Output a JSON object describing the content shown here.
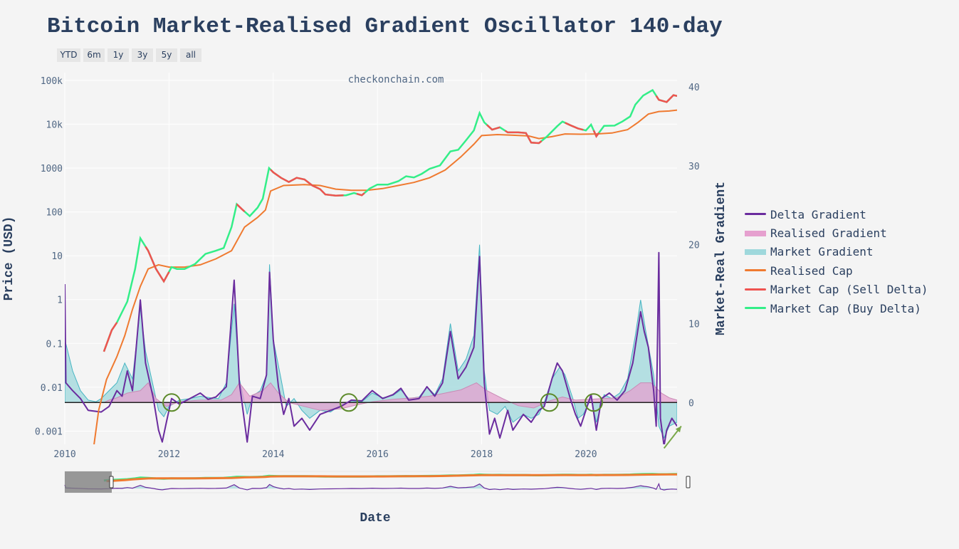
{
  "title": "Bitcoin Market-Realised Gradient Oscillator 140-day",
  "range_buttons": [
    "YTD",
    "6m",
    "1y",
    "3y",
    "5y",
    "all"
  ],
  "watermark": "checkonchain.com",
  "colors": {
    "delta_gradient": "#6a2c9e",
    "realised_gradient": "#e6a0cf",
    "market_gradient": "#9fd8dc",
    "market_gradient_line": "#46b5c3",
    "realised_cap": "#ef7a30",
    "sell_delta": "#ef5350",
    "buy_delta": "#33ee88",
    "annotation": "#5d8a2a",
    "zero_line": "#222222"
  },
  "chart_data": {
    "type": "line",
    "title": "Bitcoin Market-Realised Gradient Oscillator 140-day",
    "xlabel": "Date",
    "ylabel_left": "Price (USD)",
    "ylabel_right": "Market-Real Gradient",
    "x_range": [
      "2010-01-01",
      "2021-10-01"
    ],
    "x_ticks": [
      "2010",
      "2012",
      "2014",
      "2016",
      "2018",
      "2020"
    ],
    "y_left": {
      "scale": "log",
      "range": [
        0.0005,
        150000
      ],
      "ticks": [
        {
          "value": 0.001,
          "label": "0.001"
        },
        {
          "value": 0.01,
          "label": "0.01"
        },
        {
          "value": 0.1,
          "label": "0.1"
        },
        {
          "value": 1,
          "label": "1"
        },
        {
          "value": 10,
          "label": "10"
        },
        {
          "value": 100,
          "label": "100"
        },
        {
          "value": 1000,
          "label": "1000"
        },
        {
          "value": 10000,
          "label": "10k"
        },
        {
          "value": 100000,
          "label": "100k"
        }
      ]
    },
    "y_right": {
      "scale": "linear",
      "range": [
        -5.3,
        41.8
      ],
      "ticks": [
        {
          "value": 0,
          "label": "0"
        },
        {
          "value": 10,
          "label": "10"
        },
        {
          "value": 20,
          "label": "20"
        },
        {
          "value": 30,
          "label": "30"
        },
        {
          "value": 40,
          "label": "40"
        }
      ]
    },
    "legend_position": "right",
    "series": [
      {
        "name": "Delta Gradient",
        "key": "delta_gradient",
        "axis": "right",
        "style": "line"
      },
      {
        "name": "Realised Gradient",
        "key": "realised_gradient",
        "axis": "right",
        "style": "area"
      },
      {
        "name": "Market Gradient",
        "key": "market_gradient",
        "axis": "right",
        "style": "area"
      },
      {
        "name": "Realised Cap",
        "key": "realised_cap",
        "axis": "left",
        "style": "line"
      },
      {
        "name": "Market Cap (Sell Delta)",
        "key": "sell_delta",
        "axis": "left",
        "style": "line"
      },
      {
        "name": "Market Cap (Buy Delta)",
        "key": "buy_delta",
        "axis": "left",
        "style": "line"
      }
    ],
    "market_cap": [
      [
        2010.75,
        0.065
      ],
      [
        2010.9,
        0.2
      ],
      [
        2011.0,
        0.3
      ],
      [
        2011.2,
        0.9
      ],
      [
        2011.35,
        5
      ],
      [
        2011.45,
        25
      ],
      [
        2011.6,
        13
      ],
      [
        2011.75,
        5
      ],
      [
        2011.9,
        2.6
      ],
      [
        2012.05,
        5.5
      ],
      [
        2012.15,
        5
      ],
      [
        2012.3,
        5
      ],
      [
        2012.5,
        6.5
      ],
      [
        2012.7,
        11
      ],
      [
        2012.9,
        13
      ],
      [
        2013.05,
        15
      ],
      [
        2013.2,
        45
      ],
      [
        2013.3,
        150
      ],
      [
        2013.4,
        115
      ],
      [
        2013.55,
        80
      ],
      [
        2013.7,
        125
      ],
      [
        2013.8,
        200
      ],
      [
        2013.92,
        1000
      ],
      [
        2014.0,
        800
      ],
      [
        2014.15,
        600
      ],
      [
        2014.3,
        480
      ],
      [
        2014.45,
        600
      ],
      [
        2014.6,
        550
      ],
      [
        2014.75,
        400
      ],
      [
        2014.9,
        330
      ],
      [
        2015.0,
        250
      ],
      [
        2015.2,
        235
      ],
      [
        2015.4,
        240
      ],
      [
        2015.55,
        270
      ],
      [
        2015.7,
        240
      ],
      [
        2015.85,
        340
      ],
      [
        2016.0,
        420
      ],
      [
        2016.2,
        420
      ],
      [
        2016.4,
        500
      ],
      [
        2016.55,
        650
      ],
      [
        2016.7,
        610
      ],
      [
        2016.85,
        740
      ],
      [
        2017.0,
        960
      ],
      [
        2017.2,
        1150
      ],
      [
        2017.4,
        2400
      ],
      [
        2017.55,
        2600
      ],
      [
        2017.7,
        4300
      ],
      [
        2017.85,
        7200
      ],
      [
        2017.96,
        18000
      ],
      [
        2018.05,
        11000
      ],
      [
        2018.2,
        7500
      ],
      [
        2018.35,
        8500
      ],
      [
        2018.5,
        6500
      ],
      [
        2018.7,
        6500
      ],
      [
        2018.85,
        6300
      ],
      [
        2018.95,
        3800
      ],
      [
        2019.1,
        3700
      ],
      [
        2019.25,
        5200
      ],
      [
        2019.45,
        9000
      ],
      [
        2019.55,
        11500
      ],
      [
        2019.7,
        9500
      ],
      [
        2019.85,
        8000
      ],
      [
        2020.0,
        7200
      ],
      [
        2020.1,
        9800
      ],
      [
        2020.2,
        5300
      ],
      [
        2020.35,
        9200
      ],
      [
        2020.55,
        9300
      ],
      [
        2020.7,
        11500
      ],
      [
        2020.85,
        15000
      ],
      [
        2020.95,
        28000
      ],
      [
        2021.1,
        45000
      ],
      [
        2021.28,
        60000
      ],
      [
        2021.4,
        36000
      ],
      [
        2021.55,
        32000
      ],
      [
        2021.68,
        46000
      ],
      [
        2021.75,
        44000
      ]
    ],
    "market_cap_sell_segments": [
      [
        2010.75,
        2011.0
      ],
      [
        2011.55,
        2012.0
      ],
      [
        2013.3,
        2013.45
      ],
      [
        2013.95,
        2015.35
      ],
      [
        2015.6,
        2015.75
      ],
      [
        2018.1,
        2018.35
      ],
      [
        2018.45,
        2019.15
      ],
      [
        2019.6,
        2019.95
      ],
      [
        2020.15,
        2020.25
      ],
      [
        2021.35,
        2021.75
      ]
    ],
    "realised_cap": [
      [
        2010.55,
        0.0004
      ],
      [
        2010.65,
        0.003
      ],
      [
        2010.8,
        0.015
      ],
      [
        2011.0,
        0.05
      ],
      [
        2011.15,
        0.15
      ],
      [
        2011.3,
        0.6
      ],
      [
        2011.45,
        2.0
      ],
      [
        2011.6,
        5
      ],
      [
        2011.8,
        6.2
      ],
      [
        2012.0,
        5.5
      ],
      [
        2012.3,
        5.5
      ],
      [
        2012.6,
        6.2
      ],
      [
        2012.9,
        8.5
      ],
      [
        2013.2,
        13
      ],
      [
        2013.45,
        45
      ],
      [
        2013.7,
        75
      ],
      [
        2013.85,
        110
      ],
      [
        2013.95,
        300
      ],
      [
        2014.2,
        400
      ],
      [
        2014.6,
        420
      ],
      [
        2014.9,
        400
      ],
      [
        2015.2,
        330
      ],
      [
        2015.5,
        310
      ],
      [
        2015.8,
        310
      ],
      [
        2016.1,
        340
      ],
      [
        2016.4,
        400
      ],
      [
        2016.7,
        470
      ],
      [
        2017.0,
        600
      ],
      [
        2017.3,
        900
      ],
      [
        2017.6,
        1800
      ],
      [
        2017.85,
        3500
      ],
      [
        2018.0,
        5500
      ],
      [
        2018.3,
        5800
      ],
      [
        2018.6,
        5600
      ],
      [
        2018.9,
        5400
      ],
      [
        2019.1,
        4700
      ],
      [
        2019.35,
        5200
      ],
      [
        2019.6,
        6000
      ],
      [
        2019.9,
        5900
      ],
      [
        2020.2,
        6000
      ],
      [
        2020.5,
        6300
      ],
      [
        2020.8,
        7500
      ],
      [
        2021.0,
        11000
      ],
      [
        2021.2,
        17000
      ],
      [
        2021.4,
        19500
      ],
      [
        2021.6,
        20000
      ],
      [
        2021.75,
        21000
      ]
    ],
    "market_gradient": [
      [
        2010.0,
        8.0
      ],
      [
        2010.15,
        4.0
      ],
      [
        2010.3,
        1.5
      ],
      [
        2010.45,
        0.3
      ],
      [
        2010.6,
        0.1
      ],
      [
        2010.7,
        0.5
      ],
      [
        2010.85,
        1.5
      ],
      [
        2011.0,
        2.5
      ],
      [
        2011.15,
        5.0
      ],
      [
        2011.3,
        3.0
      ],
      [
        2011.45,
        12.0
      ],
      [
        2011.55,
        6.5
      ],
      [
        2011.7,
        2.0
      ],
      [
        2011.8,
        -1.0
      ],
      [
        2011.9,
        -1.8
      ],
      [
        2012.0,
        -0.5
      ],
      [
        2012.2,
        0.3
      ],
      [
        2012.4,
        0.5
      ],
      [
        2012.6,
        0.8
      ],
      [
        2012.8,
        0.6
      ],
      [
        2012.95,
        0.5
      ],
      [
        2013.1,
        2.5
      ],
      [
        2013.25,
        12.5
      ],
      [
        2013.35,
        3.0
      ],
      [
        2013.5,
        -1.5
      ],
      [
        2013.6,
        0.8
      ],
      [
        2013.75,
        1.5
      ],
      [
        2013.87,
        3.5
      ],
      [
        2013.93,
        17.5
      ],
      [
        2014.0,
        8.0
      ],
      [
        2014.15,
        3.0
      ],
      [
        2014.25,
        -0.5
      ],
      [
        2014.4,
        0.5
      ],
      [
        2014.55,
        -1.0
      ],
      [
        2014.7,
        -2.0
      ],
      [
        2014.9,
        -1.0
      ],
      [
        2015.1,
        -1.2
      ],
      [
        2015.3,
        -0.3
      ],
      [
        2015.5,
        0.2
      ],
      [
        2015.7,
        0.1
      ],
      [
        2015.9,
        1.2
      ],
      [
        2016.1,
        0.6
      ],
      [
        2016.3,
        0.9
      ],
      [
        2016.45,
        1.6
      ],
      [
        2016.6,
        0.5
      ],
      [
        2016.8,
        0.7
      ],
      [
        2016.95,
        2.0
      ],
      [
        2017.1,
        1.0
      ],
      [
        2017.25,
        3.0
      ],
      [
        2017.4,
        10.0
      ],
      [
        2017.55,
        4.0
      ],
      [
        2017.7,
        5.5
      ],
      [
        2017.85,
        8.5
      ],
      [
        2017.96,
        20.0
      ],
      [
        2018.05,
        4.0
      ],
      [
        2018.15,
        -1.0
      ],
      [
        2018.3,
        -1.5
      ],
      [
        2018.45,
        -0.5
      ],
      [
        2018.6,
        -2.5
      ],
      [
        2018.8,
        -1.5
      ],
      [
        2018.95,
        -2.0
      ],
      [
        2019.1,
        -1.5
      ],
      [
        2019.2,
        0.0
      ],
      [
        2019.35,
        3.0
      ],
      [
        2019.5,
        4.5
      ],
      [
        2019.6,
        3.5
      ],
      [
        2019.75,
        0.5
      ],
      [
        2019.85,
        -2.0
      ],
      [
        2019.95,
        -1.5
      ],
      [
        2020.1,
        0.5
      ],
      [
        2020.2,
        -2.5
      ],
      [
        2020.35,
        1.0
      ],
      [
        2020.5,
        0.5
      ],
      [
        2020.65,
        1.2
      ],
      [
        2020.8,
        3.0
      ],
      [
        2020.95,
        8.5
      ],
      [
        2021.05,
        13.0
      ],
      [
        2021.15,
        9.0
      ],
      [
        2021.3,
        3.5
      ],
      [
        2021.4,
        -3.0
      ],
      [
        2021.5,
        -4.5
      ],
      [
        2021.6,
        -3.0
      ],
      [
        2021.75,
        -2.5
      ]
    ],
    "realised_gradient": [
      [
        2010.75,
        0.0
      ],
      [
        2010.85,
        0.3
      ],
      [
        2011.0,
        0.6
      ],
      [
        2011.2,
        1.2
      ],
      [
        2011.45,
        1.5
      ],
      [
        2011.6,
        2.5
      ],
      [
        2011.75,
        0.5
      ],
      [
        2011.95,
        -0.5
      ],
      [
        2012.2,
        0.1
      ],
      [
        2012.6,
        0.3
      ],
      [
        2013.0,
        0.3
      ],
      [
        2013.2,
        1.0
      ],
      [
        2013.35,
        2.5
      ],
      [
        2013.55,
        0.8
      ],
      [
        2013.8,
        1.5
      ],
      [
        2013.95,
        2.5
      ],
      [
        2014.1,
        1.2
      ],
      [
        2014.3,
        0.0
      ],
      [
        2014.6,
        -0.5
      ],
      [
        2014.9,
        -1.0
      ],
      [
        2015.3,
        -0.8
      ],
      [
        2015.6,
        -0.3
      ],
      [
        2015.9,
        0.1
      ],
      [
        2016.3,
        0.4
      ],
      [
        2016.7,
        0.6
      ],
      [
        2017.0,
        0.8
      ],
      [
        2017.3,
        1.2
      ],
      [
        2017.6,
        1.6
      ],
      [
        2017.9,
        2.5
      ],
      [
        2018.1,
        1.5
      ],
      [
        2018.4,
        0.5
      ],
      [
        2018.7,
        -0.4
      ],
      [
        2019.0,
        -0.7
      ],
      [
        2019.3,
        0.2
      ],
      [
        2019.55,
        0.7
      ],
      [
        2019.8,
        0.3
      ],
      [
        2020.1,
        0.4
      ],
      [
        2020.3,
        0.5
      ],
      [
        2020.6,
        0.6
      ],
      [
        2020.85,
        1.5
      ],
      [
        2021.05,
        2.5
      ],
      [
        2021.25,
        2.5
      ],
      [
        2021.45,
        1.2
      ],
      [
        2021.6,
        0.6
      ],
      [
        2021.75,
        0.3
      ]
    ],
    "delta_gradient": [
      [
        2010.0,
        15.0
      ],
      [
        2010.02,
        2.5
      ],
      [
        2010.15,
        1.5
      ],
      [
        2010.3,
        0.5
      ],
      [
        2010.45,
        -1.0
      ],
      [
        2010.7,
        -1.2
      ],
      [
        2010.85,
        -0.5
      ],
      [
        2011.0,
        1.5
      ],
      [
        2011.1,
        0.8
      ],
      [
        2011.2,
        4.0
      ],
      [
        2011.3,
        1.5
      ],
      [
        2011.45,
        13.0
      ],
      [
        2011.55,
        5.0
      ],
      [
        2011.7,
        0.5
      ],
      [
        2011.8,
        -3.5
      ],
      [
        2011.87,
        -5.0
      ],
      [
        2011.95,
        -2.5
      ],
      [
        2012.05,
        0.5
      ],
      [
        2012.2,
        -0.2
      ],
      [
        2012.4,
        0.5
      ],
      [
        2012.6,
        1.2
      ],
      [
        2012.75,
        0.4
      ],
      [
        2012.9,
        0.7
      ],
      [
        2013.1,
        2.0
      ],
      [
        2013.25,
        15.5
      ],
      [
        2013.35,
        2.5
      ],
      [
        2013.5,
        -5.0
      ],
      [
        2013.6,
        0.8
      ],
      [
        2013.75,
        0.5
      ],
      [
        2013.87,
        3.5
      ],
      [
        2013.93,
        16.5
      ],
      [
        2014.0,
        8.0
      ],
      [
        2014.1,
        2.0
      ],
      [
        2014.2,
        -1.5
      ],
      [
        2014.3,
        0.5
      ],
      [
        2014.4,
        -3.0
      ],
      [
        2014.55,
        -2.0
      ],
      [
        2014.7,
        -3.5
      ],
      [
        2014.9,
        -1.5
      ],
      [
        2015.1,
        -1.0
      ],
      [
        2015.3,
        -0.5
      ],
      [
        2015.5,
        0.3
      ],
      [
        2015.7,
        0.2
      ],
      [
        2015.9,
        1.5
      ],
      [
        2016.1,
        0.5
      ],
      [
        2016.3,
        1.0
      ],
      [
        2016.45,
        1.8
      ],
      [
        2016.6,
        0.3
      ],
      [
        2016.8,
        0.5
      ],
      [
        2016.95,
        2.0
      ],
      [
        2017.1,
        0.8
      ],
      [
        2017.25,
        2.5
      ],
      [
        2017.4,
        9.0
      ],
      [
        2017.55,
        3.0
      ],
      [
        2017.7,
        4.5
      ],
      [
        2017.85,
        7.0
      ],
      [
        2017.96,
        18.5
      ],
      [
        2018.05,
        2.5
      ],
      [
        2018.15,
        -4.0
      ],
      [
        2018.25,
        -2.0
      ],
      [
        2018.35,
        -4.5
      ],
      [
        2018.5,
        -1.0
      ],
      [
        2018.6,
        -3.5
      ],
      [
        2018.8,
        -1.5
      ],
      [
        2018.95,
        -2.5
      ],
      [
        2019.1,
        -1.0
      ],
      [
        2019.2,
        -0.5
      ],
      [
        2019.35,
        3.0
      ],
      [
        2019.45,
        5.0
      ],
      [
        2019.55,
        4.0
      ],
      [
        2019.7,
        0.5
      ],
      [
        2019.8,
        -1.5
      ],
      [
        2019.9,
        -3.0
      ],
      [
        2020.0,
        -1.0
      ],
      [
        2020.1,
        1.0
      ],
      [
        2020.2,
        -3.5
      ],
      [
        2020.3,
        0.5
      ],
      [
        2020.45,
        1.2
      ],
      [
        2020.6,
        0.3
      ],
      [
        2020.75,
        1.5
      ],
      [
        2020.9,
        5.0
      ],
      [
        2021.05,
        11.5
      ],
      [
        2021.12,
        9.0
      ],
      [
        2021.2,
        7.0
      ],
      [
        2021.3,
        1.5
      ],
      [
        2021.35,
        -3.0
      ],
      [
        2021.4,
        19.0
      ],
      [
        2021.43,
        -2.0
      ],
      [
        2021.5,
        -5.5
      ],
      [
        2021.55,
        -3.5
      ],
      [
        2021.65,
        -2.0
      ],
      [
        2021.75,
        -3.0
      ]
    ],
    "annotations": {
      "circles": [
        2012.05,
        2015.45,
        2019.3,
        2020.15
      ],
      "arrow": {
        "from": [
          2021.5,
          -5.8
        ],
        "to": [
          2021.83,
          -3.0
        ]
      }
    }
  }
}
